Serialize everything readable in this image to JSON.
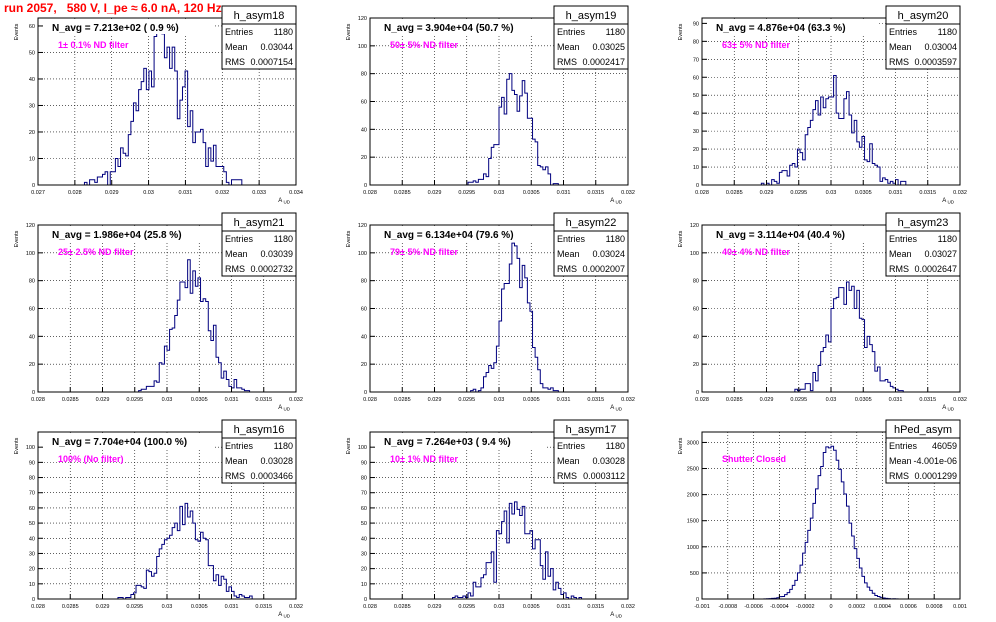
{
  "page_title": "run 2057,   580 V, I_pe ≈ 6.0 nA, 120 Hz",
  "colors": {
    "histogram_line": "#00007f",
    "annotation": "#ff00ff",
    "title": "#ff0000",
    "frame": "#000000",
    "grid": "#000000"
  },
  "chart_data": [
    {
      "type": "histogram",
      "hist_name": "h_asym18",
      "stats": [
        [
          "Entries",
          "1180"
        ],
        [
          "Mean",
          "0.03044"
        ],
        [
          "RMS",
          "0.0007154"
        ]
      ],
      "navg": "N_avg = 7.213e+02 ( 0.9 %)",
      "annotation": "1± 0.1% ND filter",
      "ylabel": "Events",
      "xlabel": "A_UD",
      "xlim": [
        0.027,
        0.034
      ],
      "ylim": [
        0,
        63
      ],
      "xticks": [
        0.027,
        0.028,
        0.029,
        0.03,
        0.031,
        0.032,
        0.033,
        0.034
      ],
      "xtick_labels": [
        "0.027",
        "0.028",
        "0.029",
        "0.03",
        "0.031",
        "0.032",
        "0.033",
        "0.034"
      ],
      "yticks": [
        0,
        10,
        20,
        30,
        40,
        50,
        60
      ],
      "ytick_labels": [
        "0",
        "10",
        "20",
        "30",
        "40",
        "50",
        "60"
      ],
      "grid": true,
      "mean": 0.03044,
      "sigma": 0.000715,
      "peak": 50
    },
    {
      "type": "histogram",
      "hist_name": "h_asym19",
      "stats": [
        [
          "Entries",
          "1180"
        ],
        [
          "Mean",
          "0.03025"
        ],
        [
          "RMS",
          "0.0002417"
        ]
      ],
      "navg": "N_avg = 3.904e+04 (50.7 %)",
      "annotation": "50± 5% ND filter",
      "ylabel": "Events",
      "xlabel": "A_UD",
      "xlim": [
        0.028,
        0.032
      ],
      "ylim": [
        0,
        120
      ],
      "xticks": [
        0.028,
        0.0285,
        0.029,
        0.0295,
        0.03,
        0.0305,
        0.031,
        0.0315,
        0.032
      ],
      "xtick_labels": [
        "0.028",
        "0.0285",
        "0.029",
        "0.0295",
        "0.03",
        "0.0305",
        "0.031",
        "0.0315",
        "0.032"
      ],
      "yticks": [
        0,
        20,
        40,
        60,
        80,
        100,
        120
      ],
      "ytick_labels": [
        "0",
        "20",
        "40",
        "60",
        "80",
        "100",
        "120"
      ],
      "grid": true,
      "mean": 0.03025,
      "sigma": 0.000242,
      "peak": 70
    },
    {
      "type": "histogram",
      "hist_name": "h_asym20",
      "stats": [
        [
          "Entries",
          "1180"
        ],
        [
          "Mean",
          "0.03004"
        ],
        [
          "RMS",
          "0.0003597"
        ]
      ],
      "navg": "N_avg = 4.876e+04 (63.3 %)",
      "annotation": "63± 5% ND filter",
      "ylabel": "Events",
      "xlabel": "A_UD",
      "xlim": [
        0.028,
        0.032
      ],
      "ylim": [
        0,
        93
      ],
      "xticks": [
        0.028,
        0.0285,
        0.029,
        0.0295,
        0.03,
        0.0305,
        0.031,
        0.0315,
        0.032
      ],
      "xtick_labels": [
        "0.028",
        "0.0285",
        "0.029",
        "0.0295",
        "0.03",
        "0.0305",
        "0.031",
        "0.0315",
        "0.032"
      ],
      "yticks": [
        0,
        10,
        20,
        30,
        40,
        50,
        60,
        70,
        80,
        90
      ],
      "ytick_labels": [
        "0",
        "10",
        "20",
        "30",
        "40",
        "50",
        "60",
        "70",
        "80",
        "90"
      ],
      "grid": true,
      "mean": 0.03004,
      "sigma": 0.00036,
      "peak": 48
    },
    {
      "type": "histogram",
      "hist_name": "h_asym21",
      "stats": [
        [
          "Entries",
          "1180"
        ],
        [
          "Mean",
          "0.03039"
        ],
        [
          "RMS",
          "0.0002732"
        ]
      ],
      "navg": "N_avg = 1.986e+04 (25.8 %)",
      "annotation": "25± 2.5% ND filter",
      "ylabel": "Events",
      "xlabel": "A_UD",
      "xlim": [
        0.028,
        0.032
      ],
      "ylim": [
        0,
        120
      ],
      "xticks": [
        0.028,
        0.0285,
        0.029,
        0.0295,
        0.03,
        0.0305,
        0.031,
        0.0315,
        0.032
      ],
      "xtick_labels": [
        "0.028",
        "0.0285",
        "0.029",
        "0.0295",
        "0.03",
        "0.0305",
        "0.031",
        "0.0315",
        "0.032"
      ],
      "yticks": [
        0,
        20,
        40,
        60,
        80,
        100,
        120
      ],
      "ytick_labels": [
        "0",
        "20",
        "40",
        "60",
        "80",
        "100",
        "120"
      ],
      "grid": true,
      "mean": 0.03039,
      "sigma": 0.000273,
      "peak": 80
    },
    {
      "type": "histogram",
      "hist_name": "h_asym22",
      "stats": [
        [
          "Entries",
          "1180"
        ],
        [
          "Mean",
          "0.03024"
        ],
        [
          "RMS",
          "0.0002007"
        ]
      ],
      "navg": "N_avg = 6.134e+04 (79.6 %)",
      "annotation": "79± 5% ND filter",
      "ylabel": "Events",
      "xlabel": "A_UD",
      "xlim": [
        0.028,
        0.032
      ],
      "ylim": [
        0,
        120
      ],
      "xticks": [
        0.028,
        0.0285,
        0.029,
        0.0295,
        0.03,
        0.0305,
        0.031,
        0.0315,
        0.032
      ],
      "xtick_labels": [
        "0.028",
        "0.0285",
        "0.029",
        "0.0295",
        "0.03",
        "0.0305",
        "0.031",
        "0.0315",
        "0.032"
      ],
      "yticks": [
        0,
        20,
        40,
        60,
        80,
        100,
        120
      ],
      "ytick_labels": [
        "0",
        "20",
        "40",
        "60",
        "80",
        "100",
        "120"
      ],
      "grid": true,
      "mean": 0.03024,
      "sigma": 0.0002,
      "peak": 103
    },
    {
      "type": "histogram",
      "hist_name": "h_asym23",
      "stats": [
        [
          "Entries",
          "1180"
        ],
        [
          "Mean",
          "0.03027"
        ],
        [
          "RMS",
          "0.0002647"
        ]
      ],
      "navg": "N_avg = 3.114e+04 (40.4 %)",
      "annotation": "40± 4% ND filter",
      "ylabel": "Events",
      "xlabel": "A_UD",
      "xlim": [
        0.028,
        0.032
      ],
      "ylim": [
        0,
        120
      ],
      "xticks": [
        0.028,
        0.0285,
        0.029,
        0.0295,
        0.03,
        0.0305,
        0.031,
        0.0315,
        0.032
      ],
      "xtick_labels": [
        "0.028",
        "0.0285",
        "0.029",
        "0.0295",
        "0.03",
        "0.0305",
        "0.031",
        "0.0315",
        "0.032"
      ],
      "yticks": [
        0,
        20,
        40,
        60,
        80,
        100,
        120
      ],
      "ytick_labels": [
        "0",
        "20",
        "40",
        "60",
        "80",
        "100",
        "120"
      ],
      "grid": true,
      "mean": 0.03027,
      "sigma": 0.000265,
      "peak": 75
    },
    {
      "type": "histogram",
      "hist_name": "h_asym16",
      "stats": [
        [
          "Entries",
          "1180"
        ],
        [
          "Mean",
          "0.03028"
        ],
        [
          "RMS",
          "0.0003466"
        ]
      ],
      "navg": "N_avg = 7.704e+04 (100.0 %)",
      "annotation": "100% (No filter)",
      "ylabel": "Events",
      "xlabel": "A_UD",
      "xlim": [
        0.028,
        0.032
      ],
      "ylim": [
        0,
        110
      ],
      "xticks": [
        0.028,
        0.0285,
        0.029,
        0.0295,
        0.03,
        0.0305,
        0.031,
        0.0315,
        0.032
      ],
      "xtick_labels": [
        "0.028",
        "0.0285",
        "0.029",
        "0.0295",
        "0.03",
        "0.0305",
        "0.031",
        "0.0315",
        "0.032"
      ],
      "yticks": [
        0,
        10,
        20,
        30,
        40,
        50,
        60,
        70,
        80,
        90,
        100
      ],
      "ytick_labels": [
        "0",
        "10",
        "20",
        "30",
        "40",
        "50",
        "60",
        "70",
        "80",
        "90",
        "100"
      ],
      "grid": true,
      "mean": 0.03028,
      "sigma": 0.00035,
      "peak": 55
    },
    {
      "type": "histogram",
      "hist_name": "h_asym17",
      "stats": [
        [
          "Entries",
          "1180"
        ],
        [
          "Mean",
          "0.03028"
        ],
        [
          "RMS",
          "0.0003112"
        ]
      ],
      "navg": "N_avg = 7.264e+03 ( 9.4 %)",
      "annotation": "10± 1% ND filter",
      "ylabel": "Events",
      "xlabel": "A_UD",
      "xlim": [
        0.028,
        0.032
      ],
      "ylim": [
        0,
        110
      ],
      "xticks": [
        0.028,
        0.0285,
        0.029,
        0.0295,
        0.03,
        0.0305,
        0.031,
        0.0315,
        0.032
      ],
      "xtick_labels": [
        "0.028",
        "0.0285",
        "0.029",
        "0.0295",
        "0.03",
        "0.0305",
        "0.031",
        "0.0315",
        "0.032"
      ],
      "yticks": [
        0,
        10,
        20,
        30,
        40,
        50,
        60,
        70,
        80,
        90,
        100
      ],
      "ytick_labels": [
        "0",
        "10",
        "20",
        "30",
        "40",
        "50",
        "60",
        "70",
        "80",
        "90",
        "100"
      ],
      "grid": true,
      "mean": 0.03028,
      "sigma": 0.00031,
      "peak": 60
    },
    {
      "type": "histogram",
      "hist_name": "hPed_asym",
      "stats": [
        [
          "Entries",
          "46059"
        ],
        [
          "Mean",
          "-4.001e-06"
        ],
        [
          "RMS",
          "0.0001299"
        ]
      ],
      "navg": "",
      "annotation": "Shutter Closed",
      "ylabel": "Events",
      "xlabel": "",
      "xlim": [
        -0.001,
        0.001
      ],
      "ylim": [
        0,
        3200
      ],
      "xticks": [
        -0.001,
        -0.0008,
        -0.0006,
        -0.0004,
        -0.0002,
        0,
        0.0002,
        0.0004,
        0.0006,
        0.0008,
        0.001
      ],
      "xtick_labels": [
        "-0.001",
        "-0.0008",
        "-0.0006",
        "-0.0004",
        "-0.0002",
        "0",
        "0.0002",
        "0.0004",
        "0.0006",
        "0.0008",
        "0.001"
      ],
      "yticks": [
        0,
        500,
        1000,
        1500,
        2000,
        2500,
        3000
      ],
      "ytick_labels": [
        "0",
        "500",
        "1000",
        "1500",
        "2000",
        "2500",
        "3000"
      ],
      "grid": true,
      "mean": -4e-06,
      "sigma": 0.00013,
      "peak": 2950
    }
  ]
}
